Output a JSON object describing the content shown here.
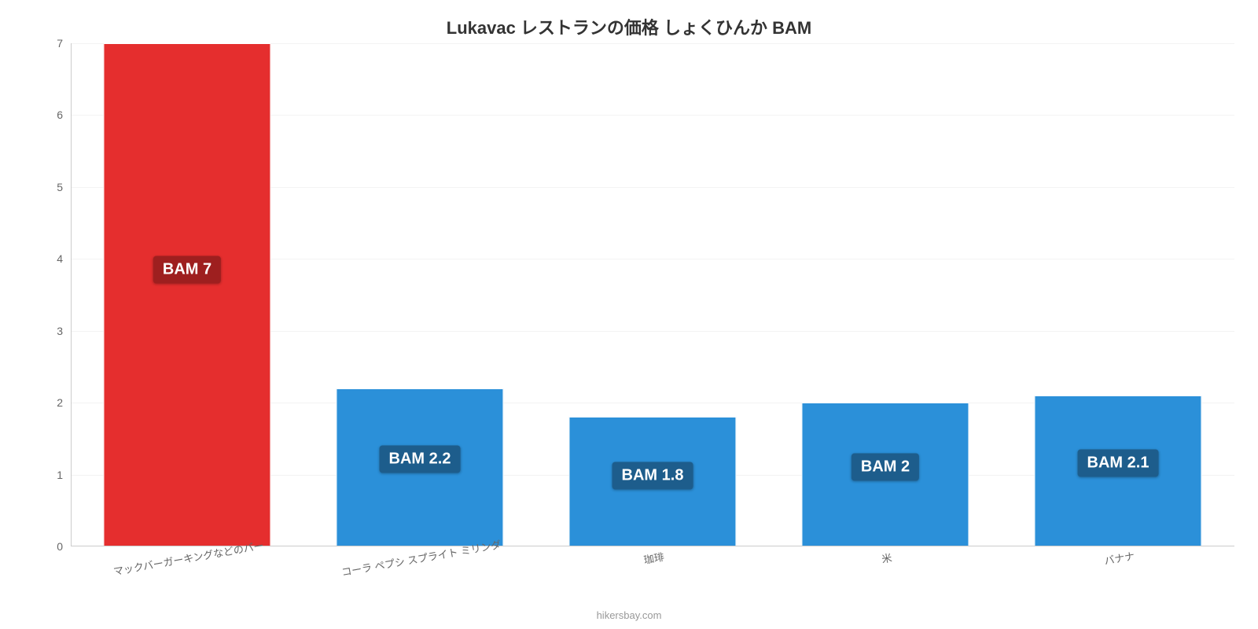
{
  "chart": {
    "type": "bar",
    "title": "Lukavac レストランの価格 しょくひんか BAM",
    "title_fontsize": 22,
    "title_color": "#333333",
    "background_color": "#ffffff",
    "grid_color": "#f3f3f3",
    "axis_color": "#cccccc",
    "ylim": [
      0,
      7
    ],
    "yticks": [
      0,
      1,
      2,
      3,
      4,
      5,
      6,
      7
    ],
    "ytick_fontsize": 14,
    "ytick_color": "#666666",
    "bar_width_ratio": 0.72,
    "bar_border_color": "#ffffff",
    "categories": [
      "マックバーガーキングなどのバー",
      "コーラ ペプシ スプライト ミリンダ",
      "珈琲",
      "米",
      "バナナ"
    ],
    "values": [
      7,
      2.2,
      1.8,
      2,
      2.1
    ],
    "value_labels": [
      "BAM 7",
      "BAM 2.2",
      "BAM 1.8",
      "BAM 2",
      "BAM 2.1"
    ],
    "bar_colors": [
      "#e52e2e",
      "#2b90d9",
      "#2b90d9",
      "#2b90d9",
      "#2b90d9"
    ],
    "badge_bg_colors": [
      "#9e1f1f",
      "#1d5d8c",
      "#1d5d8c",
      "#1d5d8c",
      "#1d5d8c"
    ],
    "badge_text_color": "#ffffff",
    "badge_fontsize": 20,
    "xlabel_fontsize": 13,
    "xlabel_color": "#666666",
    "xlabel_rotation_deg": -10
  },
  "attribution": {
    "text": "hikersbay.com",
    "color": "#999999",
    "fontsize": 13
  }
}
